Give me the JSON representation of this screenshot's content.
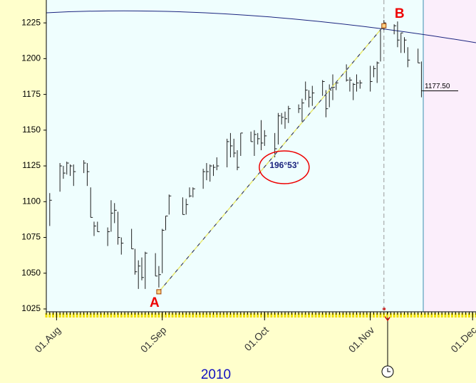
{
  "chart_data": {
    "type": "hlc",
    "year_label": "2010",
    "x": [
      "2010-07-30",
      "2010-08-02",
      "2010-08-03",
      "2010-08-04",
      "2010-08-05",
      "2010-08-06",
      "2010-08-09",
      "2010-08-10",
      "2010-08-11",
      "2010-08-12",
      "2010-08-13",
      "2010-08-16",
      "2010-08-17",
      "2010-08-18",
      "2010-08-19",
      "2010-08-20",
      "2010-08-23",
      "2010-08-24",
      "2010-08-25",
      "2010-08-26",
      "2010-08-27",
      "2010-08-30",
      "2010-08-31",
      "2010-09-01",
      "2010-09-02",
      "2010-09-03",
      "2010-09-07",
      "2010-09-08",
      "2010-09-09",
      "2010-09-10",
      "2010-09-13",
      "2010-09-14",
      "2010-09-15",
      "2010-09-16",
      "2010-09-17",
      "2010-09-20",
      "2010-09-21",
      "2010-09-22",
      "2010-09-23",
      "2010-09-24",
      "2010-09-27",
      "2010-09-28",
      "2010-09-29",
      "2010-09-30",
      "2010-10-01",
      "2010-10-04",
      "2010-10-05",
      "2010-10-06",
      "2010-10-07",
      "2010-10-08",
      "2010-10-11",
      "2010-10-12",
      "2010-10-13",
      "2010-10-14",
      "2010-10-15",
      "2010-10-18",
      "2010-10-19",
      "2010-10-20",
      "2010-10-21",
      "2010-10-22",
      "2010-10-25",
      "2010-10-26",
      "2010-10-27",
      "2010-10-28",
      "2010-10-29",
      "2010-11-01",
      "2010-11-02",
      "2010-11-03",
      "2010-11-04",
      "2010-11-05",
      "2010-11-08",
      "2010-11-09",
      "2010-11-10",
      "2010-11-11",
      "2010-11-12",
      "2010-11-15",
      "2010-11-16"
    ],
    "high": [
      1106,
      1127,
      1125,
      1128,
      1126,
      1126,
      1129,
      1127,
      1110,
      1086,
      1086,
      1082,
      1101,
      1099,
      1093,
      1075,
      1081,
      1067,
      1059,
      1061,
      1065,
      1064,
      1055,
      1081,
      1090,
      1105,
      1103,
      1102,
      1110,
      1110,
      1123,
      1127,
      1126,
      1126,
      1131,
      1144,
      1148,
      1144,
      1136,
      1148,
      1149,
      1150,
      1148,
      1157,
      1150,
      1148,
      1162,
      1162,
      1163,
      1167,
      1168,
      1172,
      1184,
      1178,
      1181,
      1185,
      1178,
      1182,
      1189,
      1183,
      1196,
      1187,
      1183,
      1189,
      1185,
      1195,
      1195,
      1198,
      1221,
      1227,
      1224,
      1226,
      1218,
      1215,
      1208,
      1207,
      1198
    ],
    "low": [
      1083,
      1107,
      1116,
      1119,
      1118,
      1111,
      1120,
      1111,
      1089,
      1076,
      1079,
      1069,
      1079,
      1085,
      1070,
      1063,
      1067,
      1049,
      1039,
      1045,
      1039,
      1048,
      1040,
      1050,
      1080,
      1091,
      1091,
      1091,
      1103,
      1103,
      1109,
      1115,
      1114,
      1118,
      1122,
      1124,
      1131,
      1131,
      1122,
      1132,
      1142,
      1132,
      1140,
      1136,
      1139,
      1131,
      1140,
      1154,
      1151,
      1155,
      1162,
      1155,
      1171,
      1166,
      1167,
      1174,
      1159,
      1166,
      1171,
      1178,
      1184,
      1177,
      1171,
      1177,
      1179,
      1177,
      1187,
      1183,
      1198,
      1220,
      1217,
      1208,
      1204,
      1204,
      1194,
      1197,
      1173
    ],
    "close": [
      1101,
      1125,
      1120,
      1127,
      1125,
      1121,
      1127,
      1121,
      1089,
      1083,
      1079,
      1079,
      1092,
      1094,
      1075,
      1071,
      1067,
      1051,
      1055,
      1047,
      1064,
      1048,
      1049,
      1080,
      1090,
      1104,
      1091,
      1098,
      1104,
      1109,
      1121,
      1121,
      1125,
      1124,
      1125,
      1142,
      1139,
      1134,
      1124,
      1148,
      1142,
      1147,
      1144,
      1141,
      1146,
      1137,
      1160,
      1159,
      1158,
      1165,
      1165,
      1169,
      1178,
      1173,
      1176,
      1184,
      1165,
      1178,
      1180,
      1183,
      1185,
      1185,
      1182,
      1183,
      1183,
      1184,
      1193,
      1197,
      1221,
      1225,
      1223,
      1213,
      1218,
      1213,
      1199,
      1197,
      1177.5
    ],
    "color": "#202020",
    "xlim": [
      "2010-07-29",
      "2010-12-02"
    ],
    "xticks": [
      {
        "value": "2010-08-01",
        "label": "01.Aug"
      },
      {
        "value": "2010-09-01",
        "label": "01.Sep"
      },
      {
        "value": "2010-10-01",
        "label": "01.Oct"
      },
      {
        "value": "2010-11-01",
        "label": "01.Nov"
      },
      {
        "value": "2010-12-01",
        "label": "01.Dec"
      }
    ],
    "ylim": [
      1023,
      1241
    ],
    "yticks": [
      1025,
      1050,
      1075,
      1100,
      1125,
      1150,
      1175,
      1200,
      1225
    ],
    "trendline": {
      "start": {
        "x": "2010-08-31",
        "y": 1037,
        "label": "A"
      },
      "end": {
        "x": "2010-11-05",
        "y": 1223,
        "label": "B"
      },
      "angle_label": "196°53'"
    },
    "last_price": {
      "value": 1177.5,
      "label": "1177.50"
    }
  }
}
